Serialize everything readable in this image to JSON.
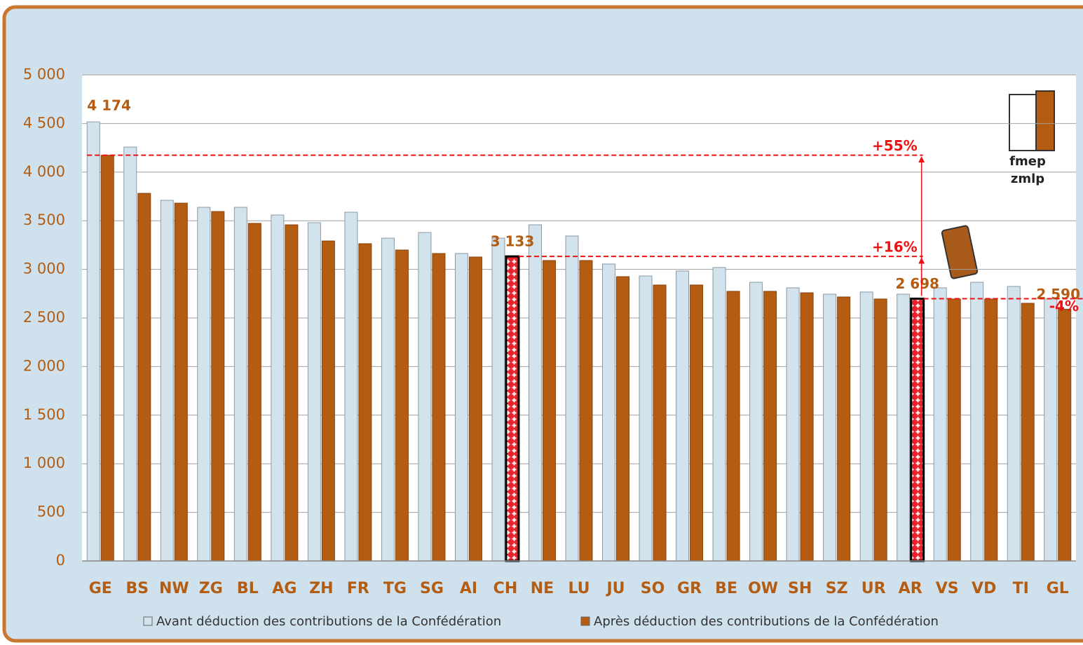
{
  "chart_data": {
    "type": "bar",
    "categories": [
      "GE",
      "BS",
      "NW",
      "ZG",
      "BL",
      "AG",
      "ZH",
      "FR",
      "TG",
      "SG",
      "AI",
      "CH",
      "NE",
      "LU",
      "JU",
      "SO",
      "GR",
      "BE",
      "OW",
      "SH",
      "SZ",
      "UR",
      "AR",
      "VS",
      "VD",
      "TI",
      "GL"
    ],
    "series": [
      {
        "name": "Avant déduction des contributions de la Confédération",
        "color": "#d3e3ed",
        "values": [
          4517,
          4258,
          3710,
          3638,
          3638,
          3559,
          3480,
          3588,
          3321,
          3379,
          3163,
          3321,
          3458,
          3343,
          3055,
          2932,
          2983,
          3019,
          2867,
          2810,
          2745,
          2767,
          2745,
          2810,
          2867,
          2824,
          2695
        ]
      },
      {
        "name": "Après déduction des contributions de la Confédération",
        "color": "#b35c12",
        "values": [
          4174,
          3782,
          3681,
          3595,
          3473,
          3458,
          3292,
          3264,
          3199,
          3163,
          3127,
          3133,
          3091,
          3091,
          2925,
          2839,
          2839,
          2774,
          2774,
          2759,
          2716,
          2695,
          2698,
          2695,
          2695,
          2651,
          2590
        ],
        "value_labels": [
          "4 174",
          null,
          null,
          null,
          null,
          null,
          null,
          null,
          null,
          null,
          null,
          "3 133",
          null,
          null,
          null,
          null,
          null,
          null,
          null,
          null,
          null,
          null,
          "2 698",
          null,
          null,
          null,
          "2 590"
        ]
      }
    ],
    "highlight": [
      "CH",
      "AR"
    ],
    "annotations": [
      {
        "text": "+55%",
        "category": "GE"
      },
      {
        "text": "+16%",
        "category": "CH"
      },
      {
        "text": "-4%",
        "category": "AR"
      }
    ],
    "reference_category": "AR",
    "ylim": [
      0,
      5000
    ],
    "yticks": [
      0,
      500,
      {
        "value": 1000,
        "label": "1 000"
      },
      {
        "value": 1500,
        "label": "1 500"
      },
      {
        "value": 2000,
        "label": "2 000"
      },
      {
        "value": 2500,
        "label": "2 500"
      },
      {
        "value": 3000,
        "label": "3 000"
      },
      {
        "value": 3500,
        "label": "3 500"
      },
      {
        "value": 4000,
        "label": "4 000"
      },
      {
        "value": 4500,
        "label": "4 500"
      },
      {
        "value": 5000,
        "label": "5 000"
      }
    ],
    "grid": true,
    "logo": [
      "fmep",
      "zmlp"
    ]
  }
}
